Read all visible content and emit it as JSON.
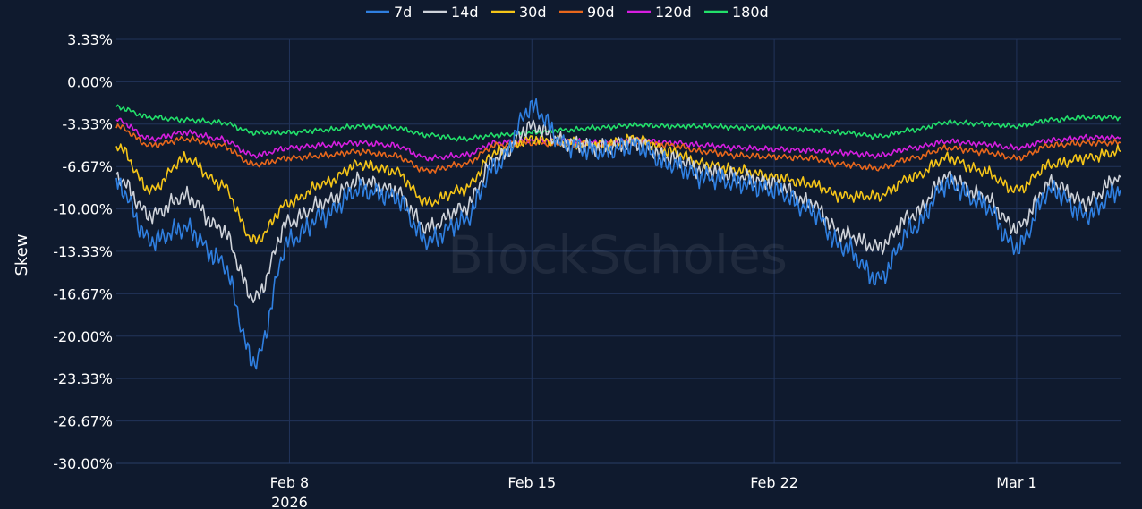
{
  "watermark": "BlockScholes",
  "chart_data": {
    "type": "line",
    "ylabel": "Skew",
    "ylim": [
      -30.0,
      3.33
    ],
    "y_ticks": [
      3.33,
      0.0,
      -3.33,
      -6.67,
      -10.0,
      -13.33,
      -16.67,
      -20.0,
      -23.33,
      -26.67,
      -30.0
    ],
    "y_tick_labels": [
      "3.33%",
      "0.00%",
      "-3.33%",
      "-6.67%",
      "-10.00%",
      "-13.33%",
      "-16.67%",
      "-20.00%",
      "-23.33%",
      "-26.67%",
      "-30.00%"
    ],
    "x_range": [
      "2026-02-03",
      "2026-03-04"
    ],
    "x_ticks": [
      {
        "date": "2026-02-08",
        "label": "Feb 8",
        "sublabel": "2026"
      },
      {
        "date": "2026-02-15",
        "label": "Feb 15",
        "sublabel": ""
      },
      {
        "date": "2026-02-22",
        "label": "Feb 22",
        "sublabel": ""
      },
      {
        "date": "2026-03-01",
        "label": "Mar 1",
        "sublabel": ""
      }
    ],
    "legend_position": "top-center",
    "grid": true,
    "series": [
      {
        "name": "7d",
        "color": "#2f7fe0",
        "x": [
          "2026-02-03",
          "2026-02-04",
          "2026-02-05",
          "2026-02-06",
          "2026-02-07",
          "2026-02-08",
          "2026-02-09",
          "2026-02-10",
          "2026-02-11",
          "2026-02-12",
          "2026-02-13",
          "2026-02-14",
          "2026-02-15",
          "2026-02-16",
          "2026-02-17",
          "2026-02-18",
          "2026-02-19",
          "2026-02-20",
          "2026-02-21",
          "2026-02-22",
          "2026-02-23",
          "2026-02-24",
          "2026-02-25",
          "2026-02-26",
          "2026-02-27",
          "2026-02-28",
          "2026-03-01",
          "2026-03-02",
          "2026-03-03",
          "2026-03-04"
        ],
        "values": [
          -8.0,
          -12.5,
          -11.5,
          -14.0,
          -22.0,
          -12.5,
          -10.5,
          -8.5,
          -9.0,
          -12.5,
          -11.0,
          -6.5,
          -2.0,
          -5.0,
          -5.5,
          -5.0,
          -6.5,
          -7.5,
          -8.0,
          -8.5,
          -10.0,
          -13.0,
          -15.5,
          -11.5,
          -8.0,
          -9.5,
          -13.0,
          -8.5,
          -10.5,
          -8.5
        ]
      },
      {
        "name": "14d",
        "color": "#cfd3da",
        "x": [
          "2026-02-03",
          "2026-02-04",
          "2026-02-05",
          "2026-02-06",
          "2026-02-07",
          "2026-02-08",
          "2026-02-09",
          "2026-02-10",
          "2026-02-11",
          "2026-02-12",
          "2026-02-13",
          "2026-02-14",
          "2026-02-15",
          "2026-02-16",
          "2026-02-17",
          "2026-02-18",
          "2026-02-19",
          "2026-02-20",
          "2026-02-21",
          "2026-02-22",
          "2026-02-23",
          "2026-02-24",
          "2026-02-25",
          "2026-02-26",
          "2026-02-27",
          "2026-02-28",
          "2026-03-01",
          "2026-03-02",
          "2026-03-03",
          "2026-03-04"
        ],
        "values": [
          -7.5,
          -10.5,
          -9.0,
          -11.5,
          -17.0,
          -11.0,
          -9.5,
          -7.8,
          -8.5,
          -11.5,
          -10.0,
          -6.0,
          -3.5,
          -4.8,
          -5.2,
          -4.8,
          -6.0,
          -7.0,
          -7.5,
          -8.0,
          -9.5,
          -12.0,
          -13.0,
          -10.5,
          -7.5,
          -9.0,
          -11.5,
          -8.0,
          -9.5,
          -7.5
        ]
      },
      {
        "name": "30d",
        "color": "#f5c518",
        "x": [
          "2026-02-03",
          "2026-02-04",
          "2026-02-05",
          "2026-02-06",
          "2026-02-07",
          "2026-02-08",
          "2026-02-09",
          "2026-02-10",
          "2026-02-11",
          "2026-02-12",
          "2026-02-13",
          "2026-02-14",
          "2026-02-15",
          "2026-02-16",
          "2026-02-17",
          "2026-02-18",
          "2026-02-19",
          "2026-02-20",
          "2026-02-21",
          "2026-02-22",
          "2026-02-23",
          "2026-02-24",
          "2026-02-25",
          "2026-02-26",
          "2026-02-27",
          "2026-02-28",
          "2026-03-01",
          "2026-03-02",
          "2026-03-03",
          "2026-03-04"
        ],
        "values": [
          -5.0,
          -8.5,
          -6.0,
          -8.0,
          -12.5,
          -9.5,
          -8.0,
          -6.5,
          -7.0,
          -9.5,
          -8.5,
          -5.5,
          -4.5,
          -4.8,
          -5.0,
          -4.5,
          -5.5,
          -6.5,
          -7.0,
          -7.5,
          -8.0,
          -9.0,
          -9.0,
          -7.5,
          -6.0,
          -7.0,
          -8.5,
          -6.5,
          -6.0,
          -5.5
        ]
      },
      {
        "name": "90d",
        "color": "#e8671c",
        "x": [
          "2026-02-03",
          "2026-02-04",
          "2026-02-05",
          "2026-02-06",
          "2026-02-07",
          "2026-02-08",
          "2026-02-09",
          "2026-02-10",
          "2026-02-11",
          "2026-02-12",
          "2026-02-13",
          "2026-02-14",
          "2026-02-15",
          "2026-02-16",
          "2026-02-17",
          "2026-02-18",
          "2026-02-19",
          "2026-02-20",
          "2026-02-21",
          "2026-02-22",
          "2026-02-23",
          "2026-02-24",
          "2026-02-25",
          "2026-02-26",
          "2026-02-27",
          "2026-02-28",
          "2026-03-01",
          "2026-03-02",
          "2026-03-03",
          "2026-03-04"
        ],
        "values": [
          -3.5,
          -5.0,
          -4.5,
          -5.0,
          -6.5,
          -6.0,
          -5.8,
          -5.5,
          -5.8,
          -7.0,
          -6.5,
          -5.0,
          -4.8,
          -4.9,
          -5.0,
          -4.8,
          -5.0,
          -5.5,
          -5.8,
          -5.9,
          -6.0,
          -6.5,
          -6.8,
          -6.0,
          -5.2,
          -5.5,
          -6.0,
          -5.0,
          -4.8,
          -4.8
        ]
      },
      {
        "name": "120d",
        "color": "#d61ee0",
        "x": [
          "2026-02-03",
          "2026-02-04",
          "2026-02-05",
          "2026-02-06",
          "2026-02-07",
          "2026-02-08",
          "2026-02-09",
          "2026-02-10",
          "2026-02-11",
          "2026-02-12",
          "2026-02-13",
          "2026-02-14",
          "2026-02-15",
          "2026-02-16",
          "2026-02-17",
          "2026-02-18",
          "2026-02-19",
          "2026-02-20",
          "2026-02-21",
          "2026-02-22",
          "2026-02-23",
          "2026-02-24",
          "2026-02-25",
          "2026-02-26",
          "2026-02-27",
          "2026-02-28",
          "2026-03-01",
          "2026-03-02",
          "2026-03-03",
          "2026-03-04"
        ],
        "values": [
          -3.0,
          -4.5,
          -4.0,
          -4.5,
          -5.8,
          -5.2,
          -5.0,
          -4.8,
          -5.0,
          -6.0,
          -5.8,
          -4.8,
          -4.6,
          -4.7,
          -4.8,
          -4.6,
          -4.8,
          -5.0,
          -5.2,
          -5.3,
          -5.4,
          -5.6,
          -5.8,
          -5.2,
          -4.7,
          -4.9,
          -5.2,
          -4.6,
          -4.4,
          -4.4
        ]
      },
      {
        "name": "180d",
        "color": "#22e06a",
        "x": [
          "2026-02-03",
          "2026-02-04",
          "2026-02-05",
          "2026-02-06",
          "2026-02-07",
          "2026-02-08",
          "2026-02-09",
          "2026-02-10",
          "2026-02-11",
          "2026-02-12",
          "2026-02-13",
          "2026-02-14",
          "2026-02-15",
          "2026-02-16",
          "2026-02-17",
          "2026-02-18",
          "2026-02-19",
          "2026-02-20",
          "2026-02-21",
          "2026-02-22",
          "2026-02-23",
          "2026-02-24",
          "2026-02-25",
          "2026-02-26",
          "2026-02-27",
          "2026-02-28",
          "2026-03-01",
          "2026-03-02",
          "2026-03-03",
          "2026-03-04"
        ],
        "values": [
          -2.0,
          -2.8,
          -3.0,
          -3.2,
          -4.0,
          -4.0,
          -3.8,
          -3.5,
          -3.6,
          -4.2,
          -4.5,
          -4.2,
          -4.0,
          -3.8,
          -3.6,
          -3.4,
          -3.5,
          -3.5,
          -3.6,
          -3.6,
          -3.8,
          -4.0,
          -4.3,
          -3.8,
          -3.2,
          -3.3,
          -3.5,
          -3.0,
          -2.8,
          -2.8
        ]
      }
    ]
  }
}
